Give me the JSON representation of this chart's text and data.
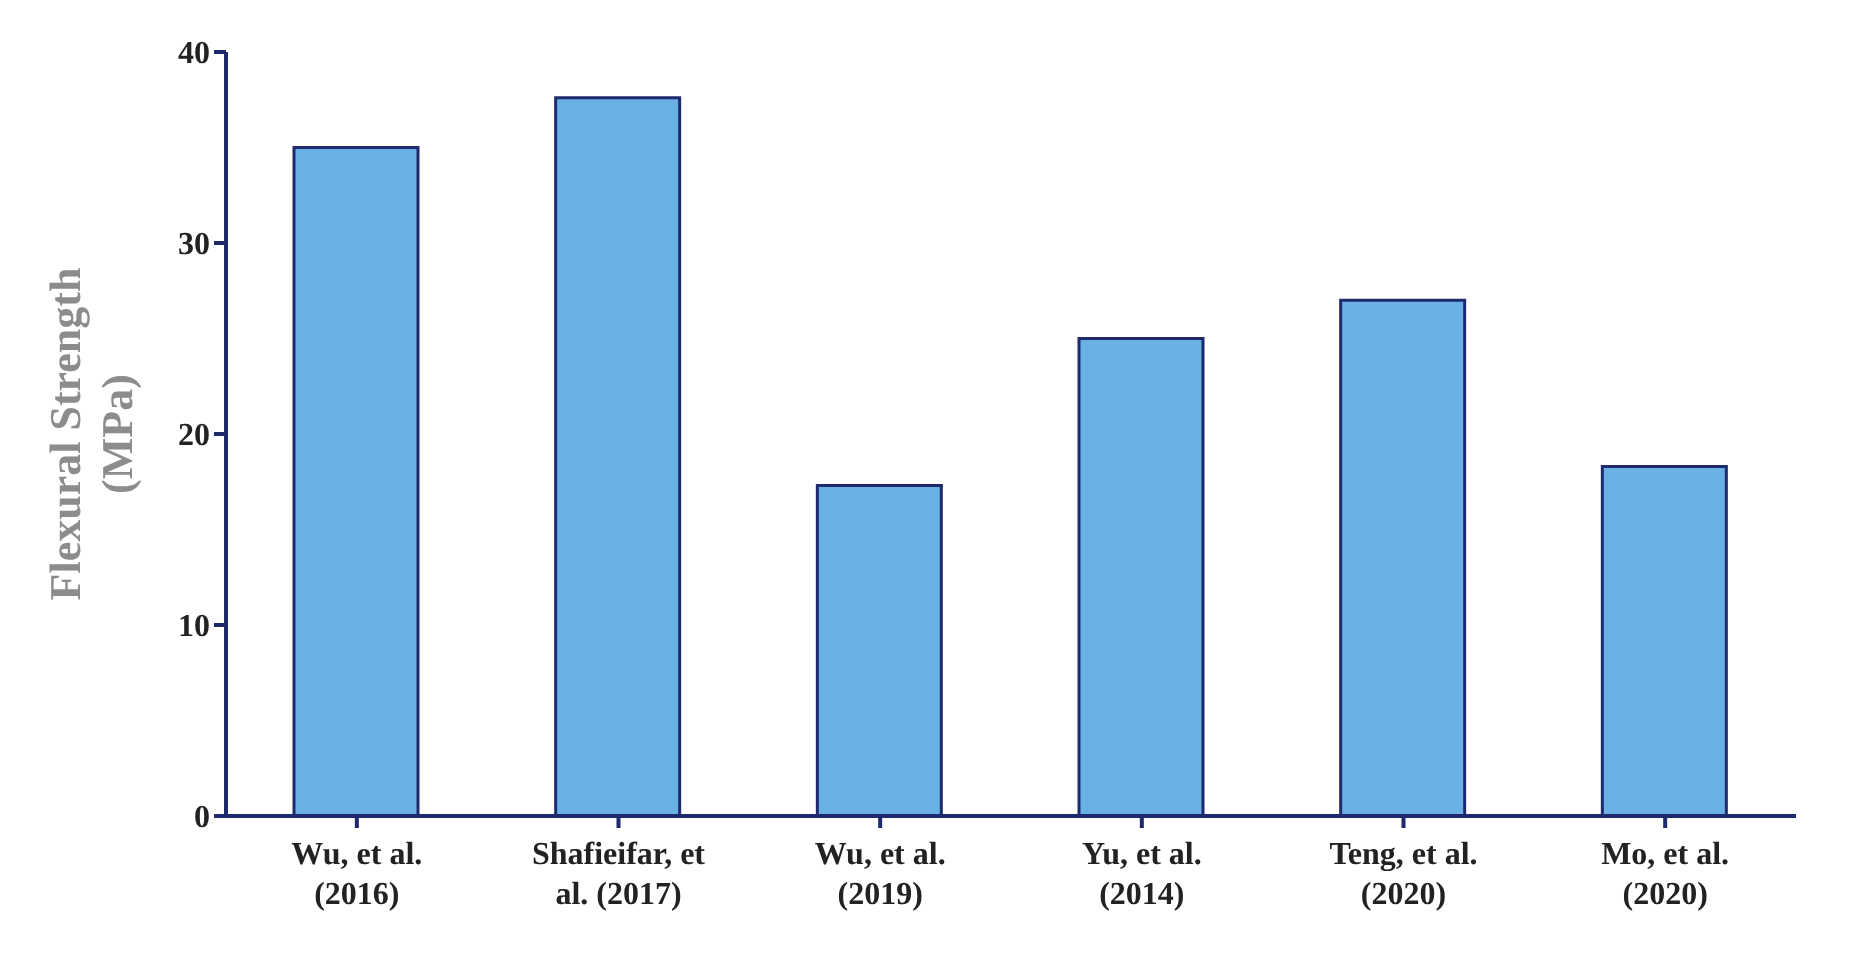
{
  "chart_data": {
    "type": "bar",
    "ylabel": "Flexural Strength (MPa)",
    "categories": [
      "Wu, et al. (2016)",
      "Shafieifar, et al. (2017)",
      "Wu, et al. (2019)",
      "Yu, et al. (2014)",
      "Teng, et al. (2020)",
      "Mo, et al. (2020)"
    ],
    "values": [
      35,
      37.6,
      17.3,
      25,
      27,
      18.3
    ],
    "color": "#2a8fd8",
    "ylim": [
      0,
      40
    ],
    "yticks": [
      0,
      10,
      20,
      30,
      40
    ],
    "grid": false,
    "legend": false
  }
}
